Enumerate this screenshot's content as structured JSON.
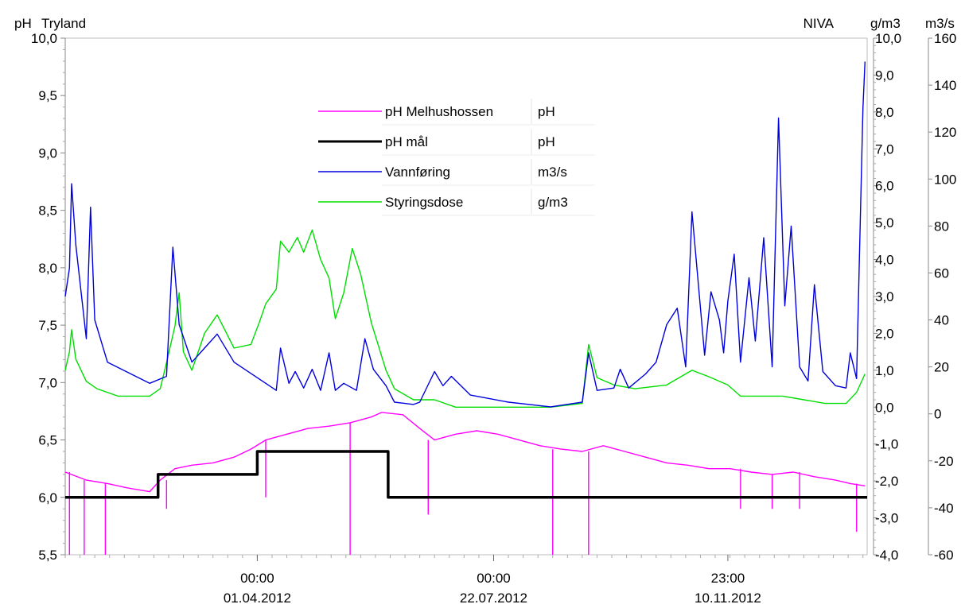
{
  "header": {
    "left_unit": "pH",
    "station": "Tryland",
    "source": "NIVA",
    "right1_unit": "g/m3",
    "right2_unit": "m3/s"
  },
  "chart_data": {
    "type": "line",
    "axes": {
      "left": {
        "unit": "pH",
        "min": 5.5,
        "max": 10.0,
        "ticks": [
          "10,0",
          "9,5",
          "9,0",
          "8,5",
          "8,0",
          "7,5",
          "7,0",
          "6,5",
          "6,0",
          "5,5"
        ]
      },
      "right1": {
        "unit": "g/m3",
        "min": -4.0,
        "max": 10.0,
        "ticks": [
          "10,0",
          "9,0",
          "8,0",
          "7,0",
          "6,0",
          "5,0",
          "4,0",
          "3,0",
          "2,0",
          "1,0",
          "0,0",
          "-1,0",
          "-2,0",
          "-3,0",
          "-4,0"
        ]
      },
      "right2": {
        "unit": "m3/s",
        "min": -60,
        "max": 160,
        "ticks": [
          "160",
          "140",
          "120",
          "100",
          "80",
          "60",
          "40",
          "20",
          "0",
          "-20",
          "-40",
          "-60"
        ]
      }
    },
    "x_range": [
      "2012-01-01",
      "2013-01-15"
    ],
    "x_ticks": [
      {
        "time": "00:00",
        "date": "01.04.2012",
        "day": 91
      },
      {
        "time": "00:00",
        "date": "22.07.2012",
        "day": 203
      },
      {
        "time": "23:00",
        "date": "10.11.2012",
        "day": 314
      }
    ],
    "legend": {
      "position": "top-center",
      "entries": [
        {
          "name": "pH Melhushossen",
          "unit": "pH",
          "color": "#ff00ff"
        },
        {
          "name": "pH mål",
          "unit": "pH",
          "color": "#000000"
        },
        {
          "name": "Vannføring",
          "unit": "m3/s",
          "color": "#0000dd"
        },
        {
          "name": "Styringsdose",
          "unit": "g/m3",
          "color": "#00dd00"
        }
      ]
    },
    "series": [
      {
        "name": "pH mål",
        "axis": "left",
        "color": "#000000",
        "step": true,
        "points": [
          [
            0,
            6.0
          ],
          [
            44,
            6.0
          ],
          [
            44,
            6.2
          ],
          [
            91,
            6.2
          ],
          [
            91,
            6.4
          ],
          [
            153,
            6.4
          ],
          [
            153,
            6.0
          ],
          [
            380,
            6.0
          ]
        ]
      },
      {
        "name": "pH Melhushossen",
        "axis": "left",
        "color": "#ff00ff",
        "points": [
          [
            0,
            6.22
          ],
          [
            10,
            6.15
          ],
          [
            20,
            6.12
          ],
          [
            30,
            6.08
          ],
          [
            40,
            6.05
          ],
          [
            45,
            6.15
          ],
          [
            52,
            6.25
          ],
          [
            60,
            6.28
          ],
          [
            70,
            6.3
          ],
          [
            80,
            6.35
          ],
          [
            88,
            6.42
          ],
          [
            95,
            6.5
          ],
          [
            105,
            6.55
          ],
          [
            115,
            6.6
          ],
          [
            125,
            6.62
          ],
          [
            135,
            6.65
          ],
          [
            145,
            6.7
          ],
          [
            150,
            6.74
          ],
          [
            160,
            6.72
          ],
          [
            168,
            6.6
          ],
          [
            175,
            6.5
          ],
          [
            185,
            6.55
          ],
          [
            195,
            6.58
          ],
          [
            205,
            6.55
          ],
          [
            215,
            6.5
          ],
          [
            225,
            6.45
          ],
          [
            235,
            6.42
          ],
          [
            245,
            6.4
          ],
          [
            255,
            6.45
          ],
          [
            265,
            6.4
          ],
          [
            275,
            6.35
          ],
          [
            285,
            6.3
          ],
          [
            295,
            6.28
          ],
          [
            305,
            6.25
          ],
          [
            315,
            6.25
          ],
          [
            325,
            6.22
          ],
          [
            335,
            6.2
          ],
          [
            345,
            6.22
          ],
          [
            355,
            6.18
          ],
          [
            365,
            6.15
          ],
          [
            372,
            6.12
          ],
          [
            379,
            6.1
          ]
        ],
        "spikes": [
          [
            2,
            5.5
          ],
          [
            9,
            5.5
          ],
          [
            19,
            5.5
          ],
          [
            48,
            5.9
          ],
          [
            95,
            6.0
          ],
          [
            135,
            5.5
          ],
          [
            172,
            5.85
          ],
          [
            231,
            5.5
          ],
          [
            248,
            5.5
          ],
          [
            320,
            5.9
          ],
          [
            335,
            5.9
          ],
          [
            348,
            5.9
          ],
          [
            375,
            5.7
          ]
        ]
      },
      {
        "name": "Vannføring",
        "axis": "right2",
        "color": "#0000dd",
        "points": [
          [
            0,
            50
          ],
          [
            2,
            62
          ],
          [
            3,
            98
          ],
          [
            5,
            72
          ],
          [
            10,
            32
          ],
          [
            12,
            88
          ],
          [
            14,
            40
          ],
          [
            20,
            22
          ],
          [
            40,
            13
          ],
          [
            48,
            16
          ],
          [
            51,
            71
          ],
          [
            54,
            38
          ],
          [
            60,
            22
          ],
          [
            66,
            28
          ],
          [
            72,
            34
          ],
          [
            80,
            22
          ],
          [
            100,
            10
          ],
          [
            102,
            28
          ],
          [
            106,
            13
          ],
          [
            109,
            18
          ],
          [
            113,
            11
          ],
          [
            117,
            19
          ],
          [
            121,
            10
          ],
          [
            125,
            26
          ],
          [
            128,
            10
          ],
          [
            132,
            13
          ],
          [
            138,
            10
          ],
          [
            142,
            32
          ],
          [
            146,
            19
          ],
          [
            152,
            12
          ],
          [
            156,
            5
          ],
          [
            165,
            4
          ],
          [
            168,
            5
          ],
          [
            175,
            18
          ],
          [
            179,
            12
          ],
          [
            183,
            16
          ],
          [
            192,
            8
          ],
          [
            210,
            5
          ],
          [
            230,
            3
          ],
          [
            245,
            5
          ],
          [
            248,
            26
          ],
          [
            252,
            10
          ],
          [
            260,
            11
          ],
          [
            263,
            19
          ],
          [
            267,
            11
          ],
          [
            275,
            17
          ],
          [
            280,
            22
          ],
          [
            285,
            38
          ],
          [
            290,
            45
          ],
          [
            294,
            20
          ],
          [
            297,
            86
          ],
          [
            303,
            25
          ],
          [
            306,
            52
          ],
          [
            310,
            40
          ],
          [
            312,
            26
          ],
          [
            314,
            48
          ],
          [
            317,
            68
          ],
          [
            320,
            22
          ],
          [
            324,
            58
          ],
          [
            327,
            31
          ],
          [
            331,
            75
          ],
          [
            335,
            20
          ],
          [
            338,
            126
          ],
          [
            341,
            46
          ],
          [
            344,
            80
          ],
          [
            348,
            20
          ],
          [
            352,
            14
          ],
          [
            355,
            55
          ],
          [
            359,
            18
          ],
          [
            365,
            12
          ],
          [
            370,
            11
          ],
          [
            372,
            26
          ],
          [
            375,
            15
          ],
          [
            378,
            130
          ],
          [
            379,
            150
          ]
        ]
      },
      {
        "name": "Styringsdose",
        "axis": "right1",
        "color": "#00dd00",
        "points": [
          [
            0,
            1.0
          ],
          [
            2,
            1.5
          ],
          [
            3,
            2.1
          ],
          [
            5,
            1.3
          ],
          [
            10,
            0.7
          ],
          [
            15,
            0.5
          ],
          [
            25,
            0.3
          ],
          [
            40,
            0.3
          ],
          [
            45,
            0.5
          ],
          [
            48,
            1.2
          ],
          [
            52,
            2.2
          ],
          [
            54,
            3.1
          ],
          [
            56,
            1.5
          ],
          [
            60,
            1.0
          ],
          [
            66,
            2.0
          ],
          [
            72,
            2.5
          ],
          [
            80,
            1.6
          ],
          [
            88,
            1.7
          ],
          [
            92,
            2.3
          ],
          [
            95,
            2.8
          ],
          [
            100,
            3.2
          ],
          [
            102,
            4.5
          ],
          [
            106,
            4.2
          ],
          [
            110,
            4.6
          ],
          [
            113,
            4.2
          ],
          [
            117,
            4.8
          ],
          [
            121,
            4.0
          ],
          [
            125,
            3.5
          ],
          [
            128,
            2.4
          ],
          [
            132,
            3.1
          ],
          [
            136,
            4.3
          ],
          [
            140,
            3.6
          ],
          [
            145,
            2.3
          ],
          [
            152,
            1.0
          ],
          [
            156,
            0.5
          ],
          [
            165,
            0.2
          ],
          [
            175,
            0.2
          ],
          [
            185,
            0.0
          ],
          [
            200,
            0.0
          ],
          [
            230,
            0.0
          ],
          [
            245,
            0.1
          ],
          [
            248,
            1.7
          ],
          [
            252,
            0.8
          ],
          [
            260,
            0.6
          ],
          [
            270,
            0.5
          ],
          [
            285,
            0.6
          ],
          [
            297,
            1.0
          ],
          [
            306,
            0.8
          ],
          [
            314,
            0.6
          ],
          [
            320,
            0.3
          ],
          [
            330,
            0.3
          ],
          [
            340,
            0.3
          ],
          [
            350,
            0.2
          ],
          [
            360,
            0.1
          ],
          [
            370,
            0.1
          ],
          [
            375,
            0.4
          ],
          [
            379,
            0.9
          ]
        ]
      }
    ]
  }
}
